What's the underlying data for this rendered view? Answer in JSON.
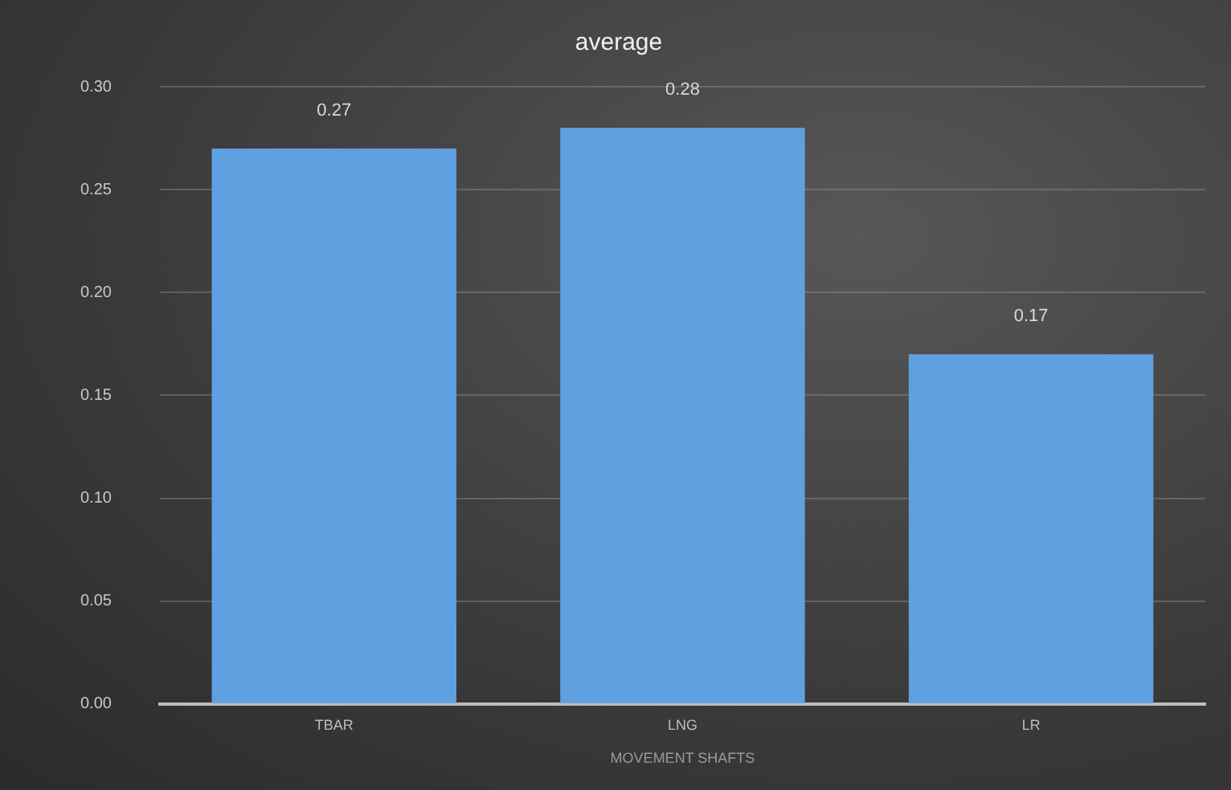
{
  "chart_data": {
    "type": "bar",
    "title": "average",
    "xlabel": "MOVEMENT SHAFTS",
    "categories": [
      "TBAR",
      "LNG",
      "LR"
    ],
    "values": [
      0.27,
      0.28,
      0.17
    ],
    "color": "#5fa0e0",
    "data_labels": true,
    "ylim": [
      0,
      0.3
    ],
    "yticks": [
      {
        "value": 0,
        "label": "0.00"
      },
      0.05,
      {
        "value": 0.1,
        "label": "0.10"
      },
      0.15,
      {
        "value": 0.2,
        "label": "0.20"
      },
      0.25,
      {
        "value": 0.3,
        "label": "0.30"
      }
    ],
    "grid": "y",
    "legend": false
  }
}
